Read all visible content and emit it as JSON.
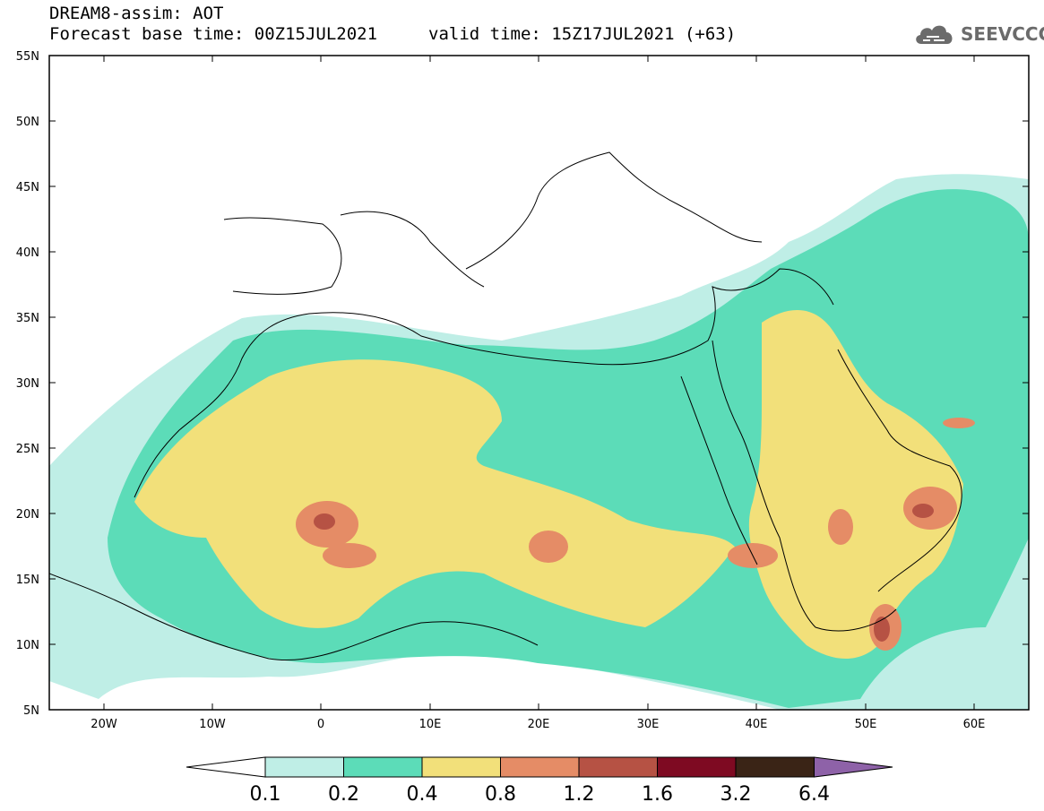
{
  "header": {
    "title": "DREAM8-assim: AOT",
    "base_time": "Forecast base time: 00Z15JUL2021",
    "valid_time": "valid time: 15Z17JUL2021 (+63)"
  },
  "logo": {
    "text": "SEEVCCC",
    "icon": "cloud-icon"
  },
  "map": {
    "lat_labels": [
      "55N",
      "50N",
      "45N",
      "40N",
      "35N",
      "30N",
      "25N",
      "20N",
      "15N",
      "10N",
      "5N"
    ],
    "lon_labels": [
      "20W",
      "10W",
      "0",
      "10E",
      "20E",
      "30E",
      "40E",
      "50E",
      "60E"
    ],
    "lon_range": [
      -25,
      65
    ],
    "lat_range": [
      5,
      55
    ]
  },
  "colorbar": {
    "labels": [
      "0.1",
      "0.2",
      "0.4",
      "0.8",
      "1.2",
      "1.6",
      "3.2",
      "6.4"
    ],
    "colors": [
      "#bfeee6",
      "#5cdcb8",
      "#f2e07a",
      "#e58c66",
      "#b65244",
      "#7e0a22",
      "#3a2416",
      "#8e62a8"
    ]
  }
}
